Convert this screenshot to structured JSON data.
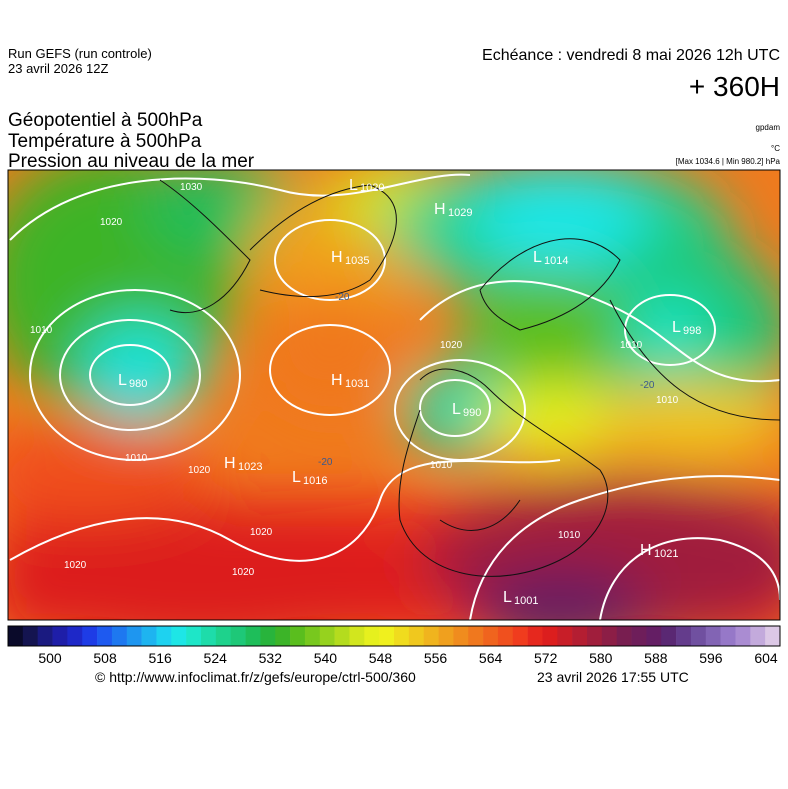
{
  "header": {
    "run": "Run GEFS (run controle)",
    "run_date": "23 avril 2026 12Z",
    "valid": "Echéance : vendredi 8 mai 2026 12h UTC",
    "lead": "+ 360H",
    "fields": [
      "Géopotentiel à 500hPa",
      "Température à 500hPa",
      "Pression au niveau de la mer"
    ],
    "unit_geo": "gpdam",
    "unit_temp": "°C",
    "pressure_range": "[Max 1034.6 | Min 980.2] hPa"
  },
  "map": {
    "centers": [
      {
        "letter": "L",
        "value": "1020"
      },
      {
        "letter": "H",
        "value": "1029"
      },
      {
        "letter": "L",
        "value": "1014"
      },
      {
        "letter": "H",
        "value": "1035"
      },
      {
        "letter": "L",
        "value": "998"
      },
      {
        "letter": "L",
        "value": "980"
      },
      {
        "letter": "H",
        "value": "1031"
      },
      {
        "letter": "L",
        "value": "990"
      },
      {
        "letter": "H",
        "value": "1023"
      },
      {
        "letter": "L",
        "value": "1016"
      },
      {
        "letter": "H",
        "value": "1021"
      },
      {
        "letter": "L",
        "value": "1001"
      }
    ],
    "isobar_labels": [
      "1030",
      "1020",
      "1010",
      "1020",
      "1010",
      "1010",
      "1010",
      "1020",
      "1010",
      "1020",
      "1010",
      "1020",
      "1020"
    ],
    "temp_labels": [
      "-20",
      "-20",
      "-20"
    ]
  },
  "colorbar": {
    "colors": [
      "#0a0a2a",
      "#141450",
      "#1a1a80",
      "#1e1ea8",
      "#1e28c8",
      "#1e3ce6",
      "#1e5af0",
      "#1e78f0",
      "#1e96f0",
      "#1eb4f0",
      "#1ed2f0",
      "#1ee6e6",
      "#1ee6c8",
      "#1edcaa",
      "#1ed28c",
      "#1ec878",
      "#1ebe5a",
      "#28b43c",
      "#3cb428",
      "#5abe1e",
      "#78c81e",
      "#96d21e",
      "#b4dc1e",
      "#d2e61e",
      "#e6f01e",
      "#f0f01e",
      "#f0dc1e",
      "#f0c81e",
      "#f0b41e",
      "#f0a01e",
      "#f08c1e",
      "#f0781e",
      "#f0641e",
      "#f0501e",
      "#f03c1e",
      "#e6281e",
      "#dc1e1e",
      "#c81e28",
      "#b41e32",
      "#a01e3c",
      "#8c1e46",
      "#781e50",
      "#6e1e5a",
      "#641e64",
      "#5a2873",
      "#643c8c",
      "#7050a0",
      "#8264b4",
      "#9678c8",
      "#aa8cd2",
      "#c3aadc",
      "#dcc8e6"
    ],
    "ticks": [
      "500",
      "508",
      "516",
      "524",
      "532",
      "540",
      "548",
      "556",
      "564",
      "572",
      "580",
      "588",
      "596",
      "604"
    ]
  },
  "footer": {
    "source": "© http://www.infoclimat.fr/z/gefs/europe/ctrl-500/360",
    "generated": "23 avril 2026 17:55 UTC"
  }
}
